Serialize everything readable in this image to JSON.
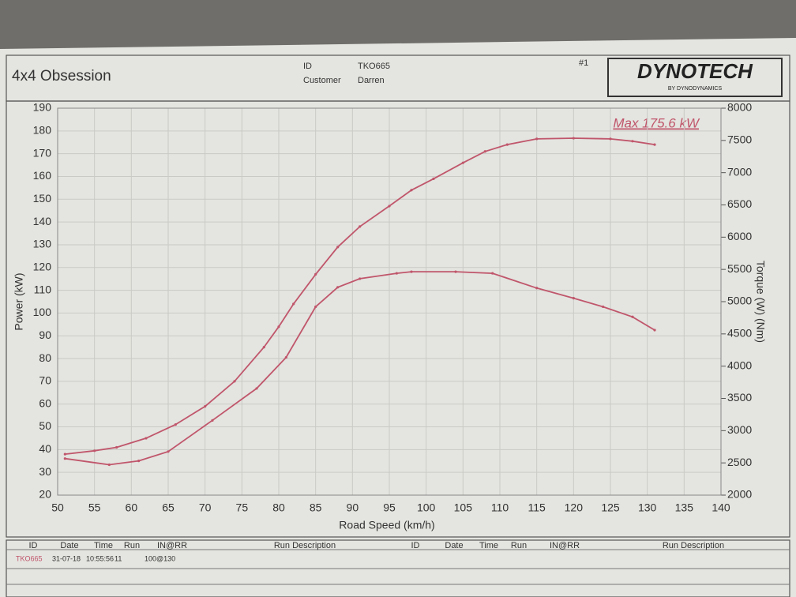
{
  "header": {
    "title": "4x4 Obsession",
    "id_label": "ID",
    "id": "TKO665",
    "customer_label": "Customer",
    "customer": "Darren",
    "run_number": "#1",
    "logo": "DYNOTECH",
    "logo_sub": "BY DYNODYNAMICS"
  },
  "chart_data": {
    "type": "line",
    "annotation": "Max 175.6 kW",
    "xlabel": "Road Speed (km/h)",
    "ylabel": "Power (kW)",
    "y2label": "Torque (W) (Nm)",
    "xlim": [
      50,
      140
    ],
    "xticks": [
      50,
      55,
      60,
      65,
      70,
      75,
      80,
      85,
      90,
      95,
      100,
      105,
      110,
      115,
      120,
      125,
      130,
      135,
      140
    ],
    "ylim": [
      20,
      190
    ],
    "yticks": [
      20,
      30,
      40,
      50,
      60,
      70,
      80,
      90,
      100,
      110,
      120,
      130,
      140,
      150,
      160,
      170,
      180,
      190
    ],
    "y2lim": [
      2000,
      8000
    ],
    "y2ticks": [
      2000,
      2500,
      3000,
      3500,
      4000,
      4500,
      5000,
      5500,
      6000,
      6500,
      7000,
      7500,
      8000
    ],
    "grid": true,
    "series": [
      {
        "color": "#c0566b",
        "x": [
          51,
          55,
          58,
          62,
          66,
          70,
          74,
          78,
          80,
          82,
          85,
          88,
          91,
          95,
          98,
          101,
          105,
          108,
          111,
          115,
          120,
          125,
          128,
          131
        ],
        "values": [
          38,
          39.5,
          41,
          45,
          51,
          59,
          70,
          85,
          94,
          104,
          117,
          129,
          138,
          147,
          154,
          159,
          166,
          171,
          174,
          176.5,
          176.8,
          176.5,
          175.5,
          174
        ]
      },
      {
        "color": "#c0566b",
        "axis": "y2",
        "x": [
          51,
          57,
          61,
          65,
          71,
          77,
          81,
          85,
          88,
          91,
          96,
          98,
          104,
          109,
          115,
          120,
          124,
          128,
          131
        ],
        "values": [
          2567,
          2471,
          2531,
          2676,
          3159,
          3654,
          4136,
          4921,
          5223,
          5356,
          5440,
          5464,
          5464,
          5440,
          5211,
          5054,
          4921,
          4764,
          4559
        ]
      }
    ]
  },
  "table": {
    "columns": [
      "ID",
      "Date",
      "Time",
      "Run",
      "IN@RR",
      "Run Description",
      "ID",
      "Date",
      "Time",
      "Run",
      "IN@RR",
      "Run Description"
    ],
    "rows": [
      [
        "TKO665",
        "31-07-18",
        "10:55:56",
        "11",
        "100@130"
      ]
    ]
  }
}
